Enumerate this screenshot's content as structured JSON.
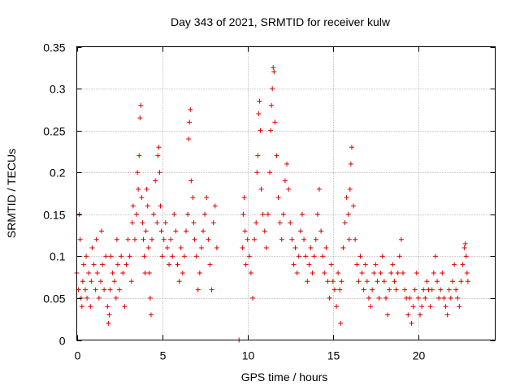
{
  "chart_data": {
    "type": "scatter",
    "title": "Day 343 of 2021, SRMTID for receiver kulw",
    "xlabel": "GPS time / hours",
    "ylabel": "SRMTID / TECUs",
    "xlim": [
      0,
      24.5
    ],
    "ylim": [
      0,
      0.35
    ],
    "x_ticks": [
      0,
      5,
      10,
      15,
      20
    ],
    "y_ticks": [
      0,
      0.05,
      0.1,
      0.15,
      0.2,
      0.25,
      0.3,
      0.35
    ],
    "x_tick_labels": [
      "0",
      "5",
      "10",
      "15",
      "20"
    ],
    "y_tick_labels": [
      "0",
      "0.05",
      "0.1",
      "0.15",
      "0.2",
      "0.25",
      "0.3",
      "0.35"
    ],
    "grid": true,
    "marker": "+",
    "color": "#e00000",
    "series": [
      {
        "name": "SRMTID",
        "points": [
          [
            0.0,
            0.08
          ],
          [
            0.1,
            0.06
          ],
          [
            0.15,
            0.15
          ],
          [
            0.2,
            0.12
          ],
          [
            0.25,
            0.05
          ],
          [
            0.3,
            0.04
          ],
          [
            0.35,
            0.07
          ],
          [
            0.4,
            0.09
          ],
          [
            0.5,
            0.06
          ],
          [
            0.55,
            0.1
          ],
          [
            0.6,
            0.05
          ],
          [
            0.7,
            0.08
          ],
          [
            0.8,
            0.04
          ],
          [
            0.85,
            0.07
          ],
          [
            0.9,
            0.11
          ],
          [
            1.0,
            0.09
          ],
          [
            1.1,
            0.06
          ],
          [
            1.15,
            0.12
          ],
          [
            1.2,
            0.08
          ],
          [
            1.3,
            0.05
          ],
          [
            1.4,
            0.07
          ],
          [
            1.45,
            0.13
          ],
          [
            1.5,
            0.09
          ],
          [
            1.6,
            0.06
          ],
          [
            1.7,
            0.1
          ],
          [
            1.8,
            0.04
          ],
          [
            1.85,
            0.02
          ],
          [
            1.9,
            0.03
          ],
          [
            1.95,
            0.06
          ],
          [
            2.0,
            0.1
          ],
          [
            2.1,
            0.08
          ],
          [
            2.2,
            0.07
          ],
          [
            2.3,
            0.05
          ],
          [
            2.35,
            0.12
          ],
          [
            2.4,
            0.09
          ],
          [
            2.5,
            0.06
          ],
          [
            2.6,
            0.1
          ],
          [
            2.7,
            0.08
          ],
          [
            2.8,
            0.04
          ],
          [
            2.9,
            0.09
          ],
          [
            3.0,
            0.12
          ],
          [
            3.1,
            0.1
          ],
          [
            3.2,
            0.07
          ],
          [
            3.25,
            0.14
          ],
          [
            3.3,
            0.16
          ],
          [
            3.4,
            0.12
          ],
          [
            3.5,
            0.15
          ],
          [
            3.55,
            0.2
          ],
          [
            3.6,
            0.18
          ],
          [
            3.65,
            0.22
          ],
          [
            3.7,
            0.265
          ],
          [
            3.75,
            0.28
          ],
          [
            3.8,
            0.17
          ],
          [
            3.85,
            0.14
          ],
          [
            3.9,
            0.12
          ],
          [
            3.95,
            0.1
          ],
          [
            4.0,
            0.08
          ],
          [
            4.05,
            0.13
          ],
          [
            4.1,
            0.18
          ],
          [
            4.15,
            0.16
          ],
          [
            4.2,
            0.11
          ],
          [
            4.25,
            0.08
          ],
          [
            4.3,
            0.05
          ],
          [
            4.35,
            0.03
          ],
          [
            4.4,
            0.12
          ],
          [
            4.5,
            0.15
          ],
          [
            4.6,
            0.19
          ],
          [
            4.7,
            0.14
          ],
          [
            4.75,
            0.22
          ],
          [
            4.8,
            0.23
          ],
          [
            4.85,
            0.2
          ],
          [
            4.9,
            0.16
          ],
          [
            4.95,
            0.13
          ],
          [
            5.0,
            0.1
          ],
          [
            5.1,
            0.12
          ],
          [
            5.2,
            0.14
          ],
          [
            5.3,
            0.11
          ],
          [
            5.4,
            0.09
          ],
          [
            5.5,
            0.12
          ],
          [
            5.6,
            0.1
          ],
          [
            5.7,
            0.15
          ],
          [
            5.8,
            0.13
          ],
          [
            5.9,
            0.09
          ],
          [
            6.0,
            0.07
          ],
          [
            6.1,
            0.11
          ],
          [
            6.2,
            0.08
          ],
          [
            6.3,
            0.1
          ],
          [
            6.4,
            0.13
          ],
          [
            6.5,
            0.15
          ],
          [
            6.55,
            0.24
          ],
          [
            6.6,
            0.26
          ],
          [
            6.65,
            0.275
          ],
          [
            6.7,
            0.19
          ],
          [
            6.8,
            0.17
          ],
          [
            6.85,
            0.14
          ],
          [
            6.9,
            0.12
          ],
          [
            7.0,
            0.1
          ],
          [
            7.1,
            0.06
          ],
          [
            7.2,
            0.08
          ],
          [
            7.3,
            0.11
          ],
          [
            7.4,
            0.13
          ],
          [
            7.5,
            0.15
          ],
          [
            7.6,
            0.17
          ],
          [
            7.7,
            0.12
          ],
          [
            7.8,
            0.09
          ],
          [
            7.9,
            0.06
          ],
          [
            8.0,
            0.14
          ],
          [
            8.1,
            0.16
          ],
          [
            8.2,
            0.11
          ],
          [
            9.5,
            0.0
          ],
          [
            9.7,
            0.11
          ],
          [
            9.75,
            0.15
          ],
          [
            9.8,
            0.17
          ],
          [
            9.85,
            0.13
          ],
          [
            9.9,
            0.09
          ],
          [
            10.0,
            0.12
          ],
          [
            10.1,
            0.1
          ],
          [
            10.2,
            0.08
          ],
          [
            10.3,
            0.05
          ],
          [
            10.4,
            0.12
          ],
          [
            10.5,
            0.14
          ],
          [
            10.55,
            0.2
          ],
          [
            10.6,
            0.22
          ],
          [
            10.65,
            0.27
          ],
          [
            10.7,
            0.285
          ],
          [
            10.75,
            0.25
          ],
          [
            10.8,
            0.18
          ],
          [
            10.9,
            0.15
          ],
          [
            11.0,
            0.13
          ],
          [
            11.1,
            0.11
          ],
          [
            11.2,
            0.15
          ],
          [
            11.3,
            0.2
          ],
          [
            11.35,
            0.25
          ],
          [
            11.4,
            0.28
          ],
          [
            11.45,
            0.3
          ],
          [
            11.5,
            0.325
          ],
          [
            11.55,
            0.32
          ],
          [
            11.6,
            0.26
          ],
          [
            11.7,
            0.22
          ],
          [
            11.8,
            0.17
          ],
          [
            11.9,
            0.14
          ],
          [
            12.0,
            0.12
          ],
          [
            12.1,
            0.15
          ],
          [
            12.2,
            0.19
          ],
          [
            12.3,
            0.21
          ],
          [
            12.4,
            0.18
          ],
          [
            12.5,
            0.14
          ],
          [
            12.6,
            0.12
          ],
          [
            12.7,
            0.09
          ],
          [
            12.8,
            0.11
          ],
          [
            12.9,
            0.08
          ],
          [
            13.0,
            0.1
          ],
          [
            13.1,
            0.13
          ],
          [
            13.2,
            0.15
          ],
          [
            13.3,
            0.12
          ],
          [
            13.4,
            0.1
          ],
          [
            13.5,
            0.07
          ],
          [
            13.6,
            0.09
          ],
          [
            13.7,
            0.11
          ],
          [
            13.8,
            0.08
          ],
          [
            13.9,
            0.1
          ],
          [
            14.0,
            0.12
          ],
          [
            14.1,
            0.15
          ],
          [
            14.2,
            0.18
          ],
          [
            14.3,
            0.13
          ],
          [
            14.4,
            0.1
          ],
          [
            14.5,
            0.08
          ],
          [
            14.6,
            0.11
          ],
          [
            14.7,
            0.07
          ],
          [
            14.8,
            0.05
          ],
          [
            14.9,
            0.09
          ],
          [
            15.0,
            0.07
          ],
          [
            15.1,
            0.06
          ],
          [
            15.2,
            0.04
          ],
          [
            15.3,
            0.08
          ],
          [
            15.4,
            0.06
          ],
          [
            15.45,
            0.02
          ],
          [
            15.5,
            0.07
          ],
          [
            15.6,
            0.11
          ],
          [
            15.7,
            0.14
          ],
          [
            15.8,
            0.17
          ],
          [
            15.9,
            0.15
          ],
          [
            15.95,
            0.12
          ],
          [
            16.0,
            0.18
          ],
          [
            16.05,
            0.21
          ],
          [
            16.1,
            0.23
          ],
          [
            16.2,
            0.16
          ],
          [
            16.3,
            0.12
          ],
          [
            16.4,
            0.09
          ],
          [
            16.5,
            0.07
          ],
          [
            16.6,
            0.1
          ],
          [
            16.7,
            0.08
          ],
          [
            16.8,
            0.06
          ],
          [
            16.9,
            0.09
          ],
          [
            17.0,
            0.07
          ],
          [
            17.1,
            0.05
          ],
          [
            17.2,
            0.04
          ],
          [
            17.3,
            0.06
          ],
          [
            17.4,
            0.08
          ],
          [
            17.5,
            0.09
          ],
          [
            17.6,
            0.07
          ],
          [
            17.7,
            0.05
          ],
          [
            17.8,
            0.08
          ],
          [
            17.9,
            0.1
          ],
          [
            18.0,
            0.07
          ],
          [
            18.1,
            0.05
          ],
          [
            18.2,
            0.03
          ],
          [
            18.3,
            0.06
          ],
          [
            18.4,
            0.08
          ],
          [
            18.5,
            0.09
          ],
          [
            18.6,
            0.07
          ],
          [
            18.7,
            0.06
          ],
          [
            18.8,
            0.08
          ],
          [
            18.9,
            0.1
          ],
          [
            19.0,
            0.12
          ],
          [
            19.1,
            0.08
          ],
          [
            19.2,
            0.06
          ],
          [
            19.3,
            0.05
          ],
          [
            19.4,
            0.03
          ],
          [
            19.5,
            0.05
          ],
          [
            19.6,
            0.02
          ],
          [
            19.7,
            0.04
          ],
          [
            19.8,
            0.06
          ],
          [
            19.9,
            0.08
          ],
          [
            20.0,
            0.05
          ],
          [
            20.1,
            0.03
          ],
          [
            20.2,
            0.04
          ],
          [
            20.3,
            0.06
          ],
          [
            20.4,
            0.05
          ],
          [
            20.5,
            0.07
          ],
          [
            20.6,
            0.06
          ],
          [
            20.7,
            0.04
          ],
          [
            20.8,
            0.06
          ],
          [
            20.9,
            0.08
          ],
          [
            21.0,
            0.1
          ],
          [
            21.1,
            0.07
          ],
          [
            21.2,
            0.05
          ],
          [
            21.3,
            0.06
          ],
          [
            21.4,
            0.08
          ],
          [
            21.5,
            0.05
          ],
          [
            21.6,
            0.04
          ],
          [
            21.7,
            0.03
          ],
          [
            21.8,
            0.06
          ],
          [
            21.9,
            0.05
          ],
          [
            22.0,
            0.07
          ],
          [
            22.1,
            0.09
          ],
          [
            22.2,
            0.06
          ],
          [
            22.3,
            0.05
          ],
          [
            22.4,
            0.04
          ],
          [
            22.5,
            0.07
          ],
          [
            22.6,
            0.09
          ],
          [
            22.7,
            0.11
          ],
          [
            22.75,
            0.115
          ],
          [
            22.8,
            0.1
          ],
          [
            22.85,
            0.08
          ],
          [
            22.9,
            0.07
          ]
        ]
      }
    ]
  }
}
